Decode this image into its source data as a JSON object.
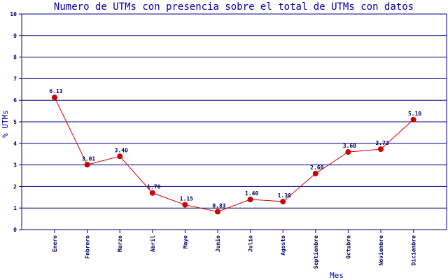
{
  "chart_data": {
    "type": "line",
    "title": "Numero de UTMs con presencia sobre el total de UTMs con datos",
    "xlabel": "Mes",
    "ylabel": "% UTMs",
    "ylim": [
      0,
      10
    ],
    "yticks": [
      "0",
      "1",
      "2",
      "3",
      "4",
      "5",
      "6",
      "7",
      "8",
      "9",
      "10"
    ],
    "grid": true,
    "categories": [
      "Enero",
      "Febrero",
      "Marzo",
      "Abril",
      "Mayo",
      "Junio",
      "Julio",
      "Agosto",
      "Septiembre",
      "Octubre",
      "Noviembre",
      "Diciembre"
    ],
    "series": [
      {
        "values": [
          6.13,
          3.01,
          3.4,
          1.7,
          1.15,
          0.83,
          1.4,
          1.3,
          2.6,
          3.6,
          3.73,
          5.1
        ],
        "labels": [
          "6.13",
          "3.01",
          "3.40",
          "1.70",
          "1.15",
          "0.83",
          "1.40",
          "1.30",
          "2.60",
          "3.60",
          "3.73",
          "5.10"
        ],
        "color": "#cc0000"
      }
    ],
    "colors": {
      "grid": "#000080",
      "axis": "#000080",
      "text": "#000066",
      "title": "#0000aa",
      "line": "#cc0000"
    }
  }
}
